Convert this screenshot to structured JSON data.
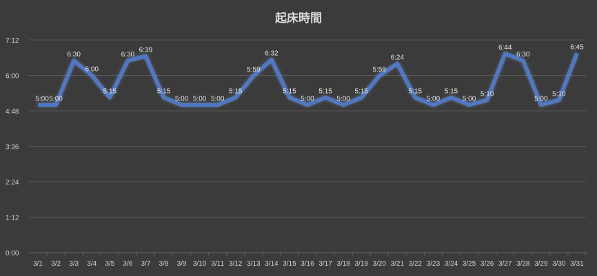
{
  "chart_data": {
    "type": "line",
    "title": "起床時間",
    "xlabel": "",
    "ylabel": "",
    "y_unit": "time (h:mm)",
    "ylim": [
      "0:00",
      "7:12"
    ],
    "yticks": [
      "0:00",
      "1:12",
      "2:24",
      "3:36",
      "4:48",
      "6:00",
      "7:12"
    ],
    "grid": true,
    "legend": "none",
    "line_color": "#4a78d0",
    "categories": [
      "3/1",
      "3/2",
      "3/3",
      "3/4",
      "3/5",
      "3/6",
      "3/7",
      "3/8",
      "3/9",
      "3/10",
      "3/11",
      "3/12",
      "3/13",
      "3/14",
      "3/15",
      "3/16",
      "3/17",
      "3/18",
      "3/19",
      "3/20",
      "3/21",
      "3/22",
      "3/23",
      "3/24",
      "3/25",
      "3/26",
      "3/27",
      "3/28",
      "3/29",
      "3/30",
      "3/31"
    ],
    "series": [
      {
        "values": [
          "5:00",
          "5:00",
          "6:30",
          "6:00",
          "5:15",
          "6:30",
          "6:39",
          "5:15",
          "5:00",
          "5:00",
          "5:00",
          "5:15",
          "5:59",
          "6:32",
          "5:15",
          "5:00",
          "5:15",
          "5:00",
          "5:15",
          "5:59",
          "6:24",
          "5:15",
          "5:00",
          "5:15",
          "5:00",
          "5:10",
          "6:44",
          "6:30",
          "5:00",
          "5:10",
          "6:45"
        ]
      }
    ]
  }
}
